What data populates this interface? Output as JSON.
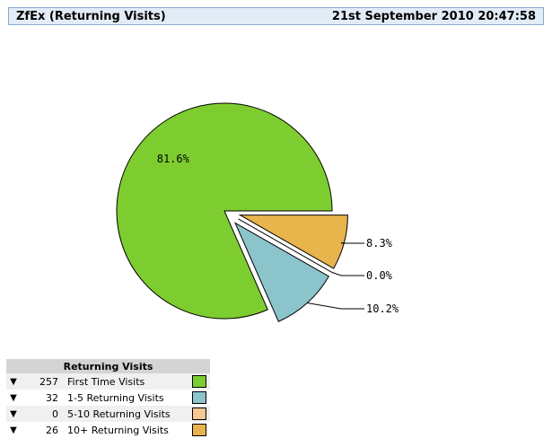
{
  "header": {
    "title": "ZfEx (Returning Visits)",
    "timestamp": "21st September 2010 20:47:58"
  },
  "legend": {
    "heading": "Returning Visits",
    "arrow_symbol": "▼",
    "rows": [
      {
        "count": "257",
        "label": "First Time Visits",
        "color": "#7ecd30"
      },
      {
        "count": "32",
        "label": "1-5 Returning Visits",
        "color": "#8cc4cc"
      },
      {
        "count": "0",
        "label": "5-10 Returning Visits",
        "color": "#f4c890"
      },
      {
        "count": "26",
        "label": "10+ Returning Visits",
        "color": "#e8b44c"
      }
    ]
  },
  "chart_data": {
    "type": "pie",
    "title": "ZfEx (Returning Visits)",
    "slices": [
      {
        "name": "First Time Visits",
        "value": 257,
        "label": "81.6%",
        "color": "#7ecd30"
      },
      {
        "name": "1-5 Returning Visits",
        "value": 32,
        "label": "10.2%",
        "color": "#8cc4cc"
      },
      {
        "name": "5-10 Returning Visits",
        "value": 0,
        "label": "0.0%",
        "color": "#f4c890"
      },
      {
        "name": "10+ Returning Visits",
        "value": 26,
        "label": "8.3%",
        "color": "#e8b44c"
      }
    ]
  }
}
